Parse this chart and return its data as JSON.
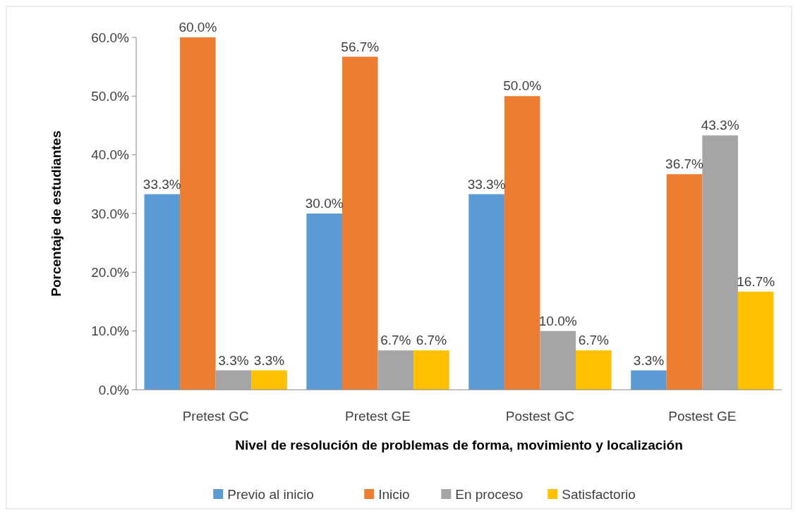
{
  "chart_data": {
    "type": "bar",
    "xlabel": "Nivel de resolución de problemas de forma, movimiento y localización",
    "ylabel": "Porcentaje de estudiantes",
    "categories": [
      "Pretest GC",
      "Pretest GE",
      "Postest GC",
      "Postest GE"
    ],
    "series": [
      {
        "name": "Previo al inicio",
        "color": "#5b9bd5",
        "values": [
          33.3,
          30.0,
          33.3,
          3.3
        ],
        "value_labels": [
          "33.3%",
          "30.0%",
          "33.3%",
          "3.3%"
        ]
      },
      {
        "name": "Inicio",
        "color": "#ed7d31",
        "values": [
          60.0,
          56.7,
          50.0,
          36.7
        ],
        "value_labels": [
          "60.0%",
          "56.7%",
          "50.0%",
          "36.7%"
        ]
      },
      {
        "name": "En proceso",
        "color": "#a5a5a5",
        "values": [
          3.3,
          6.7,
          10.0,
          43.3
        ],
        "value_labels": [
          "3.3%",
          "6.7%",
          "10.0%",
          "43.3%"
        ]
      },
      {
        "name": "Satisfactorio",
        "color": "#ffc000",
        "values": [
          3.3,
          6.7,
          6.7,
          16.7
        ],
        "value_labels": [
          "3.3%",
          "6.7%",
          "6.7%",
          "16.7%"
        ]
      }
    ],
    "ylim": [
      0,
      60
    ],
    "yticks": [
      {
        "value": 0,
        "label": "0.0%"
      },
      {
        "value": 10,
        "label": "10.0%"
      },
      {
        "value": 20,
        "label": "20.0%"
      },
      {
        "value": 30,
        "label": "30.0%"
      },
      {
        "value": 40,
        "label": "40.0%"
      },
      {
        "value": 50,
        "label": "50.0%"
      },
      {
        "value": 60,
        "label": "60.0%"
      }
    ],
    "grid": false,
    "legend": "bottom"
  }
}
